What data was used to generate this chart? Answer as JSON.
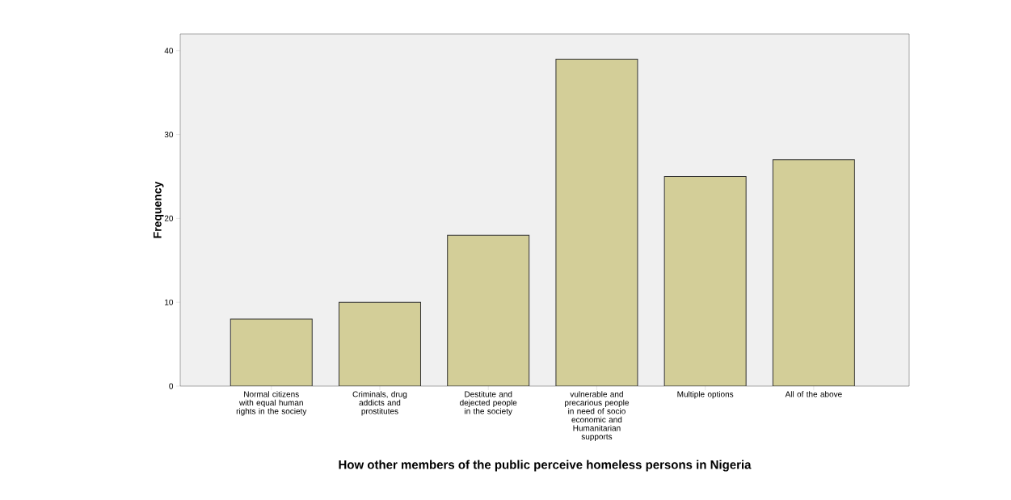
{
  "chart_data": {
    "type": "bar",
    "xlabel": "How other members of the public perceive homeless persons in Nigeria",
    "ylabel": "Frequency",
    "categories": [
      "Normal citizens with equal human rights in the society",
      "Criminals, drug addicts and prostitutes",
      "Destitute and dejected people in the society",
      "vulnerable and precarious people in need of socio economic and Humanitarian supports",
      "Multiple options",
      "All of the above"
    ],
    "values": [
      8,
      10,
      18,
      39,
      25,
      27
    ],
    "color": "#d3ce98",
    "ylim": [
      0,
      42
    ],
    "yticks": [
      0,
      10,
      20,
      30,
      40
    ]
  }
}
